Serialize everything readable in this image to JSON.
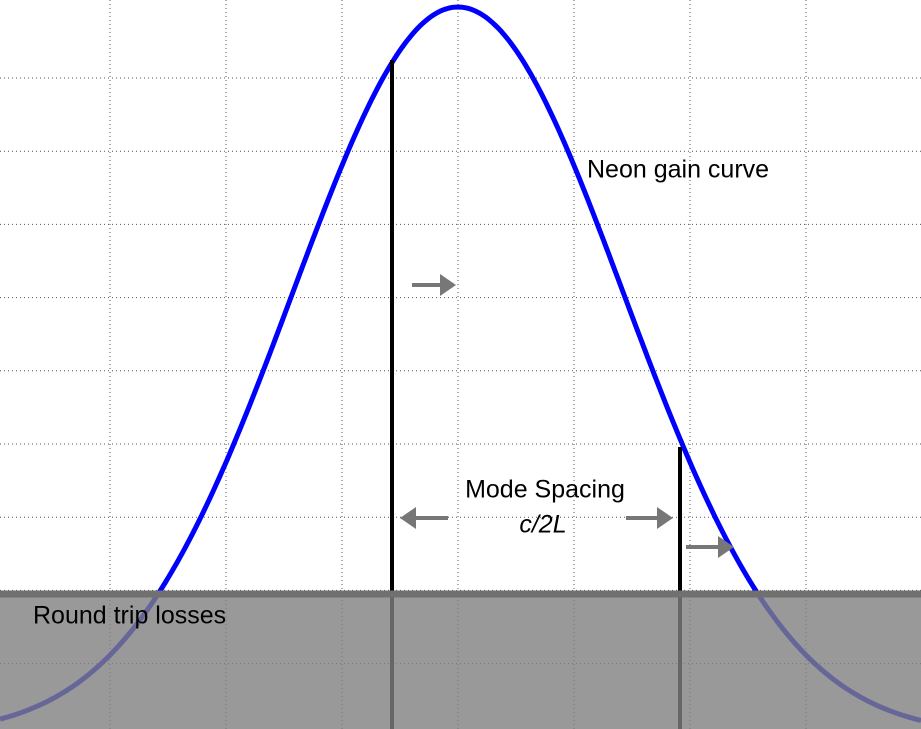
{
  "labels": {
    "gain_curve": "Neon gain curve",
    "mode_spacing": "Mode Spacing",
    "mode_spacing_formula": "c/2L",
    "losses": "Round trip losses"
  }
}
